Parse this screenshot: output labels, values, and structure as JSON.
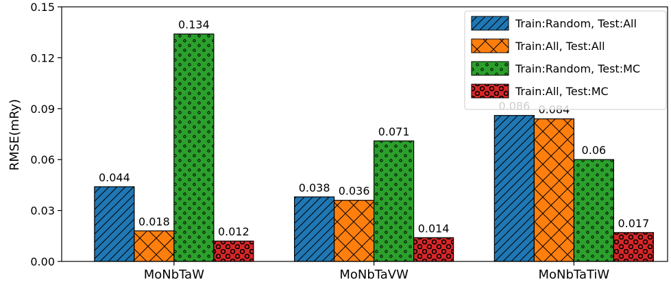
{
  "chart_data": {
    "type": "bar",
    "title": "",
    "xlabel": "",
    "ylabel": "RMSE(mRy)",
    "ylim": [
      0,
      0.15
    ],
    "yticks": [
      "0.00",
      "0.03",
      "0.06",
      "0.09",
      "0.12",
      "0.15"
    ],
    "ytick_values": [
      0,
      0.03,
      0.06,
      0.09,
      0.12,
      0.15
    ],
    "categories": [
      "MoNbTaW",
      "MoNbTaVW",
      "MoNbTaTiW"
    ],
    "legend_position": "top-right",
    "grid": false,
    "series": [
      {
        "name": "Train:Random, Test:All",
        "values": [
          0.044,
          0.038,
          0.086
        ],
        "labels": [
          "0.044",
          "0.038",
          "0.086"
        ],
        "color": "#1f77b4",
        "hatch": "diagonal"
      },
      {
        "name": "Train:All, Test:All",
        "values": [
          0.018,
          0.036,
          0.084
        ],
        "labels": [
          "0.018",
          "0.036",
          "0.084"
        ],
        "color": "#ff7f0e",
        "hatch": "cross"
      },
      {
        "name": "Train:Random, Test:MC",
        "values": [
          0.134,
          0.071,
          0.06
        ],
        "labels": [
          "0.134",
          "0.071",
          "0.06"
        ],
        "color": "#2ca02c",
        "hatch": "small-circles"
      },
      {
        "name": "Train:All, Test:MC",
        "values": [
          0.012,
          0.014,
          0.017
        ],
        "labels": [
          "0.012",
          "0.014",
          "0.017"
        ],
        "color": "#d62728",
        "hatch": "large-circles"
      }
    ]
  }
}
